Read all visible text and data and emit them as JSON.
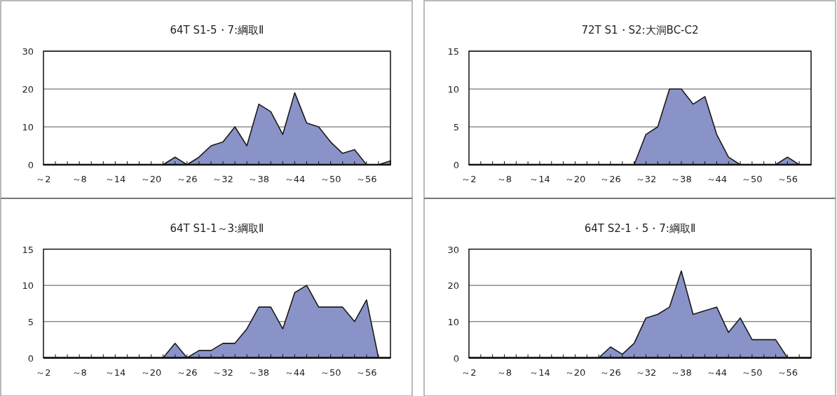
{
  "chart_data": [
    {
      "type": "area",
      "title": "64T S1-5・7:綱取Ⅱ",
      "categories": [
        "～2",
        null,
        null,
        "～8",
        null,
        null,
        "～14",
        null,
        null,
        "～20",
        null,
        null,
        "～26",
        null,
        null,
        "～32",
        null,
        null,
        "～38",
        null,
        null,
        "～44",
        null,
        null,
        "～50",
        null,
        null,
        "～56",
        null,
        null
      ],
      "color": "#8a93c8",
      "values": [
        0,
        0,
        0,
        0,
        0,
        0,
        0,
        0,
        0,
        0,
        0,
        2,
        0,
        2,
        5,
        6,
        10,
        5,
        16,
        14,
        8,
        19,
        11,
        10,
        6,
        3,
        4,
        0,
        0,
        1
      ],
      "ylim": [
        0,
        30
      ],
      "yticks": [
        0,
        10,
        20,
        30
      ],
      "grid": "y"
    },
    {
      "type": "area",
      "title": "72T S1・S2:大洞BC-C2",
      "categories": [
        "～2",
        null,
        null,
        "～8",
        null,
        null,
        "～14",
        null,
        null,
        "～20",
        null,
        null,
        "～26",
        null,
        null,
        "～32",
        null,
        null,
        "～38",
        null,
        null,
        "～44",
        null,
        null,
        "～50",
        null,
        null,
        "～56",
        null,
        null
      ],
      "color": "#8a93c8",
      "values": [
        0,
        0,
        0,
        0,
        0,
        0,
        0,
        0,
        0,
        0,
        0,
        0,
        0,
        0,
        0,
        4,
        5,
        10,
        10,
        8,
        9,
        4,
        1,
        0,
        0,
        0,
        0,
        1,
        0,
        0
      ],
      "ylim": [
        0,
        15
      ],
      "yticks": [
        0,
        5,
        10,
        15
      ],
      "grid": "y"
    },
    {
      "type": "area",
      "title": "64T S1-1～3:綱取Ⅱ",
      "categories": [
        "～2",
        null,
        null,
        "～8",
        null,
        null,
        "～14",
        null,
        null,
        "～20",
        null,
        null,
        "～26",
        null,
        null,
        "～32",
        null,
        null,
        "～38",
        null,
        null,
        "～44",
        null,
        null,
        "～50",
        null,
        null,
        "～56",
        null,
        null
      ],
      "color": "#8a93c8",
      "values": [
        0,
        0,
        0,
        0,
        0,
        0,
        0,
        0,
        0,
        0,
        0,
        2,
        0,
        1,
        1,
        2,
        2,
        4,
        7,
        7,
        4,
        9,
        10,
        7,
        7,
        7,
        5,
        8,
        0,
        0
      ],
      "ylim": [
        0,
        15
      ],
      "yticks": [
        0,
        5,
        10,
        15
      ],
      "grid": "y"
    },
    {
      "type": "area",
      "title": "64T S2-1・5・7:綱取Ⅱ",
      "categories": [
        "～2",
        null,
        null,
        "～8",
        null,
        null,
        "～14",
        null,
        null,
        "～20",
        null,
        null,
        "～26",
        null,
        null,
        "～32",
        null,
        null,
        "～38",
        null,
        null,
        "～44",
        null,
        null,
        "～50",
        null,
        null,
        "～56",
        null,
        null
      ],
      "color": "#8a93c8",
      "values": [
        0,
        0,
        0,
        0,
        0,
        0,
        0,
        0,
        0,
        0,
        0,
        0,
        3,
        1,
        4,
        11,
        12,
        14,
        24,
        12,
        13,
        14,
        7,
        11,
        5,
        5,
        5,
        0,
        0,
        0
      ],
      "ylim": [
        0,
        30
      ],
      "yticks": [
        0,
        10,
        20,
        30
      ],
      "grid": "y"
    }
  ]
}
